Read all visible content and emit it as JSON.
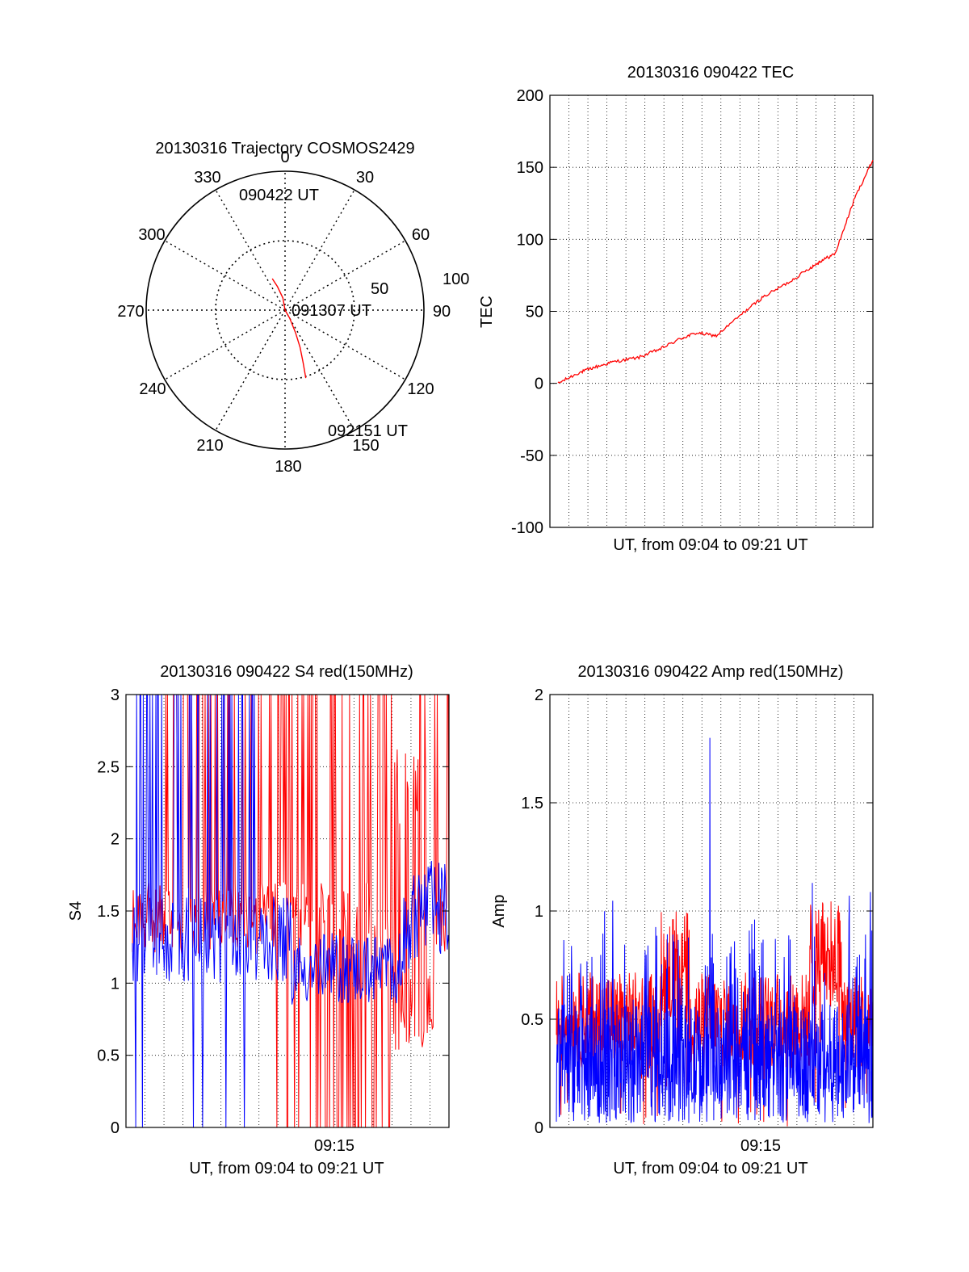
{
  "chart_data": [
    {
      "type": "polar",
      "title": "20130316 Trajectory COSMOS2429",
      "azimuth_labels": [
        "0",
        "30",
        "60",
        "90",
        "120",
        "150",
        "180",
        "210",
        "240",
        "270",
        "300",
        "330"
      ],
      "radial_labels": [
        "50",
        "100"
      ],
      "trajectory": {
        "color": "#ff0000",
        "points_az_el": [
          [
            -22,
            68
          ],
          [
            -18,
            74
          ],
          [
            -10,
            82
          ],
          [
            0,
            90
          ],
          [
            150,
            84
          ],
          [
            155,
            74
          ],
          [
            158,
            64
          ],
          [
            161,
            54
          ],
          [
            163,
            44
          ]
        ]
      },
      "annotations": [
        "090422 UT",
        "091307 UT",
        "092151 UT"
      ]
    },
    {
      "type": "line",
      "title": "20130316 090422 TEC",
      "xlabel": "UT, from 09:04 to 09:21 UT",
      "ylabel": "TEC",
      "ylim": [
        -100,
        200
      ],
      "yticks": [
        "-100",
        "-50",
        "0",
        "50",
        "100",
        "150",
        "200"
      ],
      "x_range_min": [
        0,
        17.5
      ],
      "series": [
        {
          "name": "TEC",
          "color": "#ff0000",
          "x": [
            0,
            1.1,
            2,
            3.1,
            4.5,
            5.7,
            6.8,
            7.7,
            8.8,
            10.3,
            11.4,
            12.8,
            14,
            14.6,
            15.4,
            16.5,
            17.5
          ],
          "y": [
            0,
            7,
            11,
            15,
            18,
            24,
            31,
            35,
            33,
            49,
            60,
            70,
            80,
            85,
            90,
            129,
            155
          ]
        }
      ]
    },
    {
      "type": "line",
      "title": "20130316 090422 S4 red(150MHz)",
      "xlabel": "UT, from 09:04 to 09:21 UT",
      "ylabel": "S4",
      "ylim": [
        0,
        3
      ],
      "yticks": [
        "0",
        "0.5",
        "1",
        "1.5",
        "2",
        "2.5",
        "3"
      ],
      "xtick_label": "09:15",
      "series": [
        {
          "name": "red",
          "color": "#ff0000",
          "samples": 380
        },
        {
          "name": "blue",
          "color": "#0000ff",
          "samples": 380
        }
      ]
    },
    {
      "type": "line",
      "title": "20130316 090422 Amp red(150MHz)",
      "xlabel": "UT, from 09:04 to 09:21 UT",
      "ylabel": "Amp",
      "ylim": [
        0,
        2
      ],
      "yticks": [
        "0",
        "0.5",
        "1",
        "1.5",
        "2"
      ],
      "xtick_label": "09:15",
      "peak_value": 1.8,
      "series": [
        {
          "name": "red",
          "color": "#ff0000",
          "samples": 380
        },
        {
          "name": "blue",
          "color": "#0000ff",
          "samples": 380
        }
      ]
    }
  ]
}
